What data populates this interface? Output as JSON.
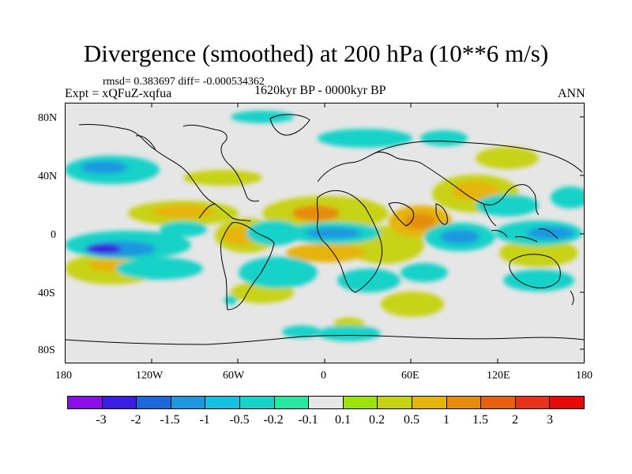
{
  "title": "Divergence (smoothed) at 200 hPa (10**6 m/s)",
  "stats": "rmsd= 0.383697 diff= -0.000534362",
  "experiment": "Expt = xQFuZ-xqfua",
  "period": "1620kyr BP - 0000kyr BP",
  "season": "ANN",
  "lat_labels": [
    "80N",
    "40N",
    "0",
    "40S",
    "80S"
  ],
  "lon_labels": [
    "180",
    "120W",
    "60W",
    "0",
    "60E",
    "120E",
    "180"
  ],
  "colorbar": {
    "labels": [
      "-3",
      "-2",
      "-1.5",
      "-1",
      "-0.5",
      "-0.2",
      "-0.1",
      "0.1",
      "0.2",
      "0.5",
      "1",
      "1.5",
      "2",
      "3"
    ],
    "colors": [
      "#8a10e6",
      "#3a1fe0",
      "#1f68dc",
      "#1d97e0",
      "#19bfe0",
      "#19d2c8",
      "#2ae6a0",
      "#e6e6e6",
      "#9be30e",
      "#c8d214",
      "#e6b40e",
      "#e68c0e",
      "#e6600e",
      "#e6321a",
      "#e60a0a"
    ]
  },
  "palette": {
    "background": "#e6e6e6",
    "coast": "#000000"
  }
}
